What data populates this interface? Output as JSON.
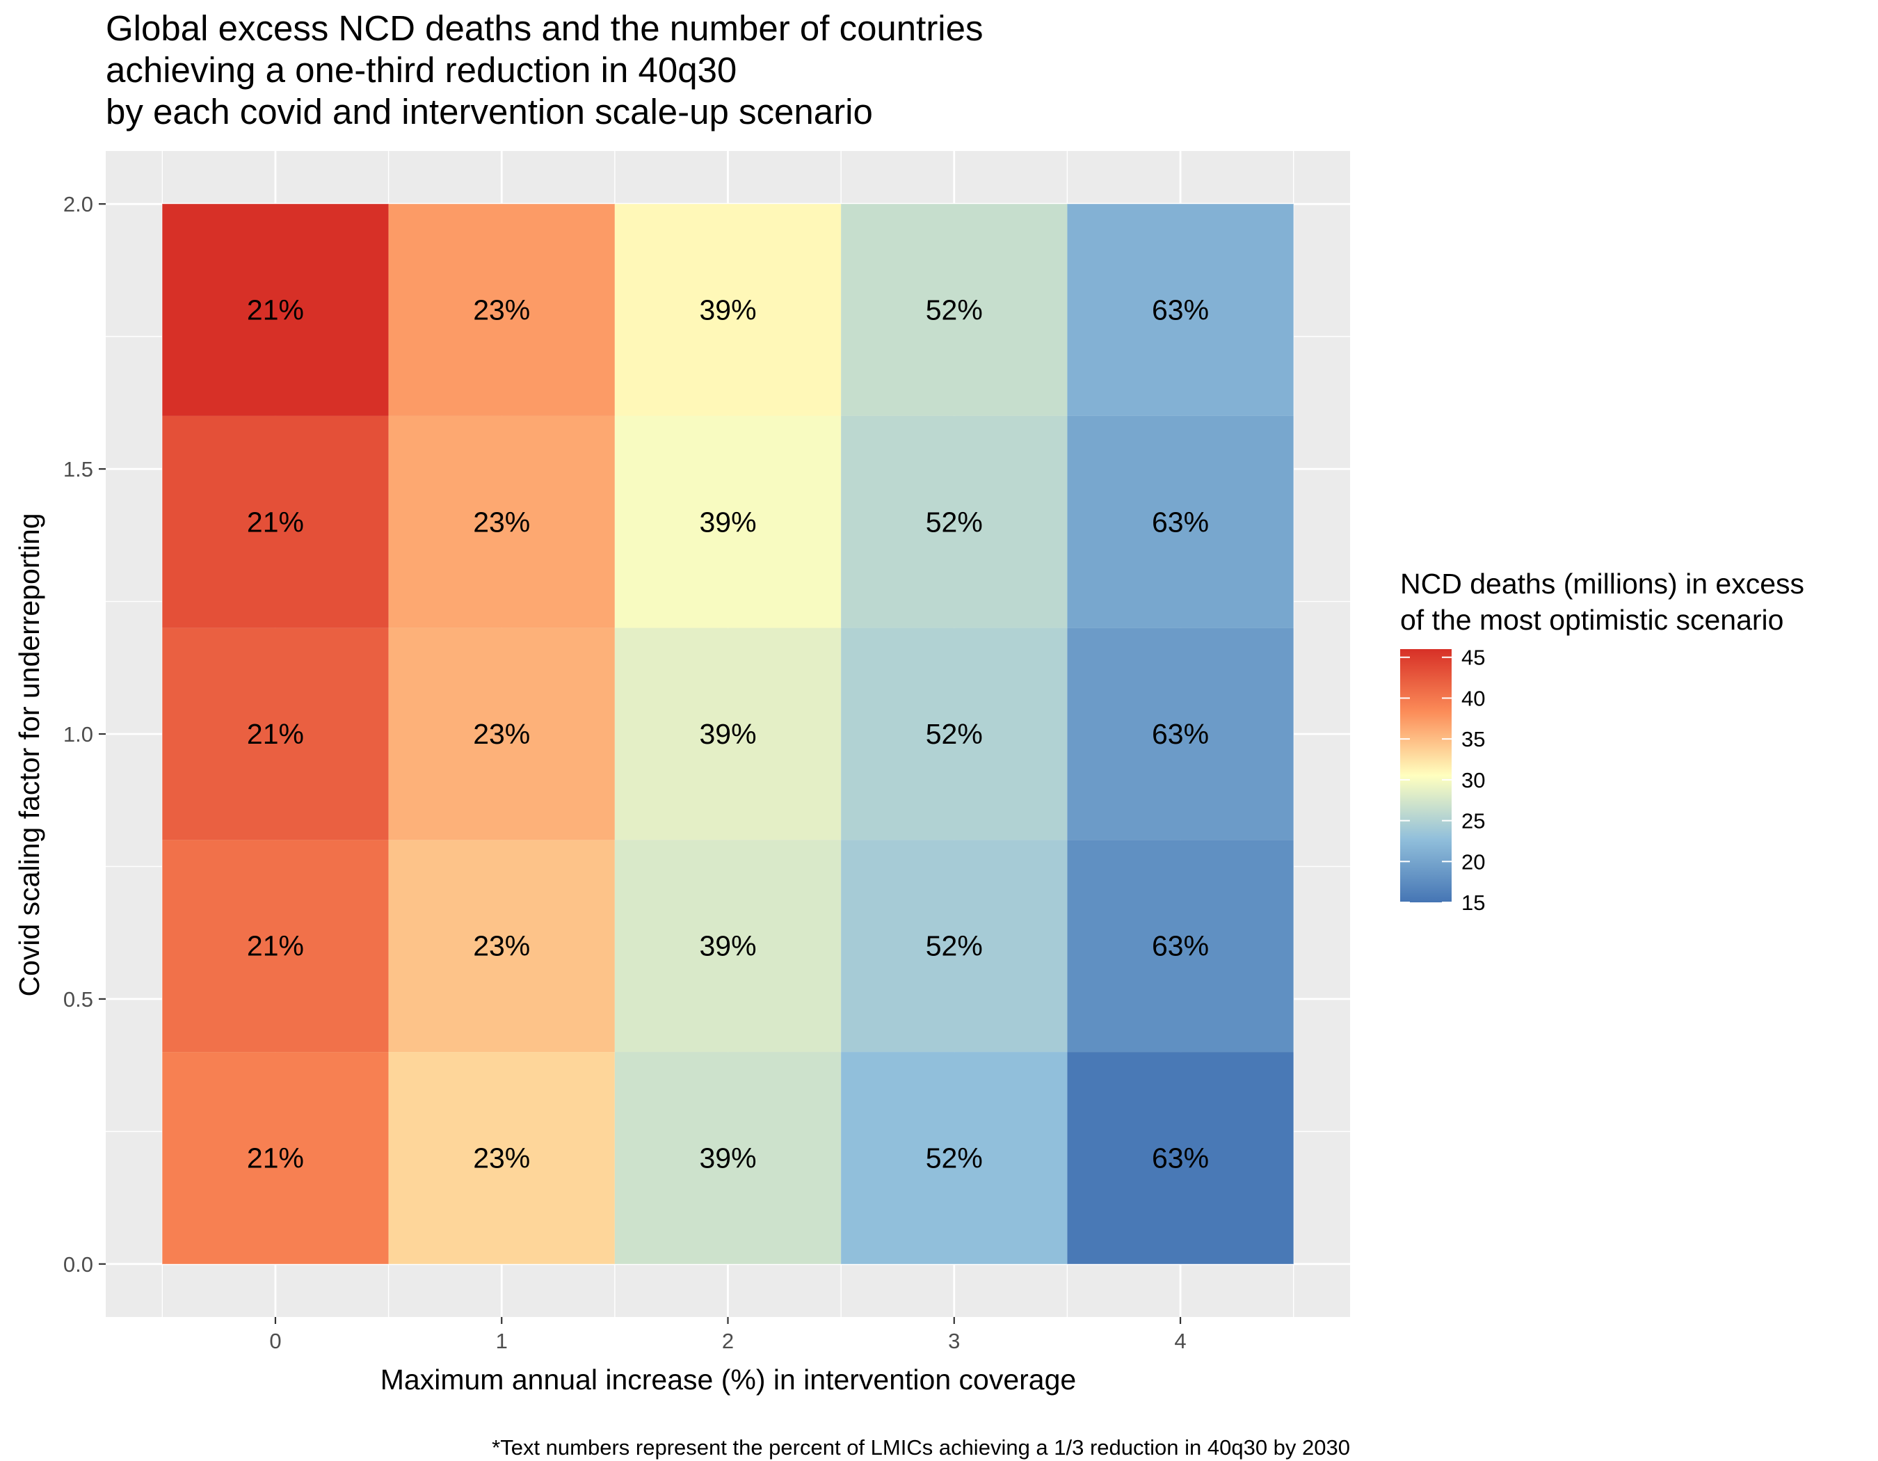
{
  "chart_data": {
    "type": "heatmap",
    "title": [
      "Global excess NCD deaths and the number of countries",
      "achieving a one-third reduction in 40q30",
      "by each covid and intervention scale-up scenario"
    ],
    "xlabel": "Maximum annual increase (%) in intervention coverage",
    "ylabel": "Covid scaling factor for underreporting",
    "caption": "*Text numbers represent the percent of LMICs achieving a 1/3 reduction in 40q30 by 2030",
    "x_ticks": [
      "0",
      "1",
      "2",
      "3",
      "4"
    ],
    "y_ticks": [
      "0.0",
      "0.5",
      "1.0",
      "1.5",
      "2.0"
    ],
    "x_values": [
      0,
      1,
      2,
      3,
      4
    ],
    "y_values": [
      0.2,
      0.6,
      1.0,
      1.4,
      1.8
    ],
    "xlim": [
      -0.75,
      4.75
    ],
    "ylim": [
      -0.1,
      2.1
    ],
    "grid": true,
    "legend": {
      "title": [
        "NCD deaths (millions) in excess",
        "of the most optimistic scenario"
      ],
      "position": "right",
      "ticks": [
        "15",
        "20",
        "25",
        "30",
        "35",
        "40",
        "45"
      ],
      "tick_values": [
        15,
        20,
        25,
        30,
        35,
        40,
        45
      ],
      "range": [
        15,
        46
      ]
    },
    "colors": {
      "panel": "#EBEBEB",
      "grid": "#FFFFFF",
      "scale": [
        "#4575B4",
        "#91BFDB",
        "#FFFFBF",
        "#FC8D59",
        "#D73027"
      ]
    },
    "cells": [
      {
        "x": 0,
        "y": 1.8,
        "value": 46.0,
        "label": "21%"
      },
      {
        "x": 1,
        "y": 1.8,
        "value": 37.3,
        "label": "23%"
      },
      {
        "x": 2,
        "y": 1.8,
        "value": 31.0,
        "label": "39%"
      },
      {
        "x": 3,
        "y": 1.8,
        "value": 26.5,
        "label": "52%"
      },
      {
        "x": 4,
        "y": 1.8,
        "value": 21.3,
        "label": "63%"
      },
      {
        "x": 0,
        "y": 1.4,
        "value": 43.3,
        "label": "21%"
      },
      {
        "x": 1,
        "y": 1.4,
        "value": 36.4,
        "label": "23%"
      },
      {
        "x": 2,
        "y": 1.4,
        "value": 30.0,
        "label": "39%"
      },
      {
        "x": 3,
        "y": 1.4,
        "value": 25.8,
        "label": "52%"
      },
      {
        "x": 4,
        "y": 1.4,
        "value": 20.2,
        "label": "63%"
      },
      {
        "x": 0,
        "y": 1.0,
        "value": 42.0,
        "label": "21%"
      },
      {
        "x": 1,
        "y": 1.0,
        "value": 35.8,
        "label": "23%"
      },
      {
        "x": 2,
        "y": 1.0,
        "value": 28.6,
        "label": "39%"
      },
      {
        "x": 3,
        "y": 1.0,
        "value": 25.0,
        "label": "52%"
      },
      {
        "x": 4,
        "y": 1.0,
        "value": 19.0,
        "label": "63%"
      },
      {
        "x": 0,
        "y": 0.6,
        "value": 40.6,
        "label": "21%"
      },
      {
        "x": 1,
        "y": 0.6,
        "value": 34.6,
        "label": "23%"
      },
      {
        "x": 2,
        "y": 0.6,
        "value": 27.8,
        "label": "39%"
      },
      {
        "x": 3,
        "y": 0.6,
        "value": 24.2,
        "label": "52%"
      },
      {
        "x": 4,
        "y": 0.6,
        "value": 17.8,
        "label": "63%"
      },
      {
        "x": 0,
        "y": 0.2,
        "value": 39.3,
        "label": "21%"
      },
      {
        "x": 1,
        "y": 0.2,
        "value": 33.3,
        "label": "23%"
      },
      {
        "x": 2,
        "y": 0.2,
        "value": 27.0,
        "label": "39%"
      },
      {
        "x": 3,
        "y": 0.2,
        "value": 22.7,
        "label": "52%"
      },
      {
        "x": 4,
        "y": 0.2,
        "value": 15.4,
        "label": "63%"
      }
    ]
  }
}
